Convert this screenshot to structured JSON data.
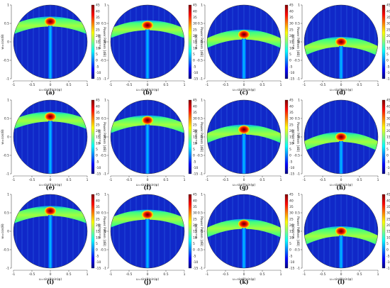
{
  "chart_data": [
    {
      "type": "heatmap",
      "panel": "(a)",
      "peak": {
        "u": 0.0,
        "v": 0.55
      },
      "xlabel": "u=sin(θ)sin(φ)",
      "ylabel": "w=cos(θ)",
      "colorbar_label": "Power Pattern [dB]",
      "colorbar_ticks": [
        45,
        40,
        35,
        30,
        25,
        20,
        15,
        10,
        5,
        0,
        -5,
        -10,
        -15
      ],
      "xticks": [
        -1,
        -0.5,
        0,
        0.5,
        1
      ],
      "yticks": [
        -1,
        -0.5,
        0,
        0.5,
        1
      ]
    },
    {
      "type": "heatmap",
      "panel": "(b)",
      "peak": {
        "u": 0.0,
        "v": 0.45
      },
      "xlabel": "u=sin(θ)sin(φ)",
      "ylabel": "w=cos(θ)",
      "colorbar_label": "Power Pattern [dB]",
      "colorbar_ticks": [
        45,
        40,
        35,
        30,
        25,
        20,
        15,
        10,
        5,
        0,
        -5,
        -10,
        -15
      ],
      "xticks": [
        -1,
        -0.5,
        0,
        0.5,
        1
      ],
      "yticks": [
        -1,
        -0.5,
        0,
        0.5,
        1
      ]
    },
    {
      "type": "heatmap",
      "panel": "(c)",
      "peak": {
        "u": 0.0,
        "v": 0.2
      },
      "xlabel": "u=sin(θ)sin(φ)",
      "ylabel": "w=cos(θ)",
      "colorbar_label": "Power Pattern [dB]",
      "colorbar_ticks": [
        45,
        40,
        35,
        30,
        25,
        20,
        15,
        10,
        5,
        0,
        -5,
        -10,
        -15
      ],
      "xticks": [
        -1,
        -0.5,
        0,
        0.5,
        1
      ],
      "yticks": [
        -1,
        -0.5,
        0,
        0.5,
        1
      ]
    },
    {
      "type": "heatmap",
      "panel": "(d)",
      "peak": {
        "u": 0.0,
        "v": 0.0
      },
      "xlabel": "u=sin(θ)sin(φ)",
      "ylabel": "w=cos(θ)",
      "colorbar_label": "Power Pattern [dB]",
      "colorbar_ticks": [
        45,
        40,
        35,
        30,
        25,
        20,
        15,
        10,
        5,
        0,
        -5,
        -10,
        -15
      ],
      "xticks": [
        -1,
        -0.5,
        0,
        0.5,
        1
      ],
      "yticks": [
        -1,
        -0.5,
        0,
        0.5,
        1
      ]
    },
    {
      "type": "heatmap",
      "panel": "(e)",
      "peak": {
        "u": 0.0,
        "v": 0.55
      },
      "xlabel": "u=sin(θ)sin(φ)",
      "ylabel": "w=cos(θ)",
      "colorbar_label": "Power Pattern [dB]",
      "colorbar_ticks": [
        45,
        40,
        35,
        30,
        25,
        20,
        15,
        10,
        5,
        0,
        -5,
        -10,
        -15
      ],
      "xticks": [
        -1,
        -0.5,
        0,
        0.5,
        1
      ],
      "yticks": [
        -1,
        -0.5,
        0,
        0.5,
        1
      ]
    },
    {
      "type": "heatmap",
      "panel": "(f)",
      "peak": {
        "u": 0.0,
        "v": 0.45
      },
      "xlabel": "u=sin(θ)sin(φ)",
      "ylabel": "w=cos(θ)",
      "colorbar_label": "Power Pattern [dB]",
      "colorbar_ticks": [
        45,
        40,
        35,
        30,
        25,
        20,
        15,
        10,
        5,
        0,
        -5,
        -10,
        -15
      ],
      "xticks": [
        -1,
        -0.5,
        0,
        0.5,
        1
      ],
      "yticks": [
        -1,
        -0.5,
        0,
        0.5,
        1
      ]
    },
    {
      "type": "heatmap",
      "panel": "(g)",
      "peak": {
        "u": 0.0,
        "v": 0.2
      },
      "xlabel": "u=sin(θ)sin(φ)",
      "ylabel": "w=cos(θ)",
      "colorbar_label": "Power Pattern [dB]",
      "colorbar_ticks": [
        45,
        40,
        35,
        30,
        25,
        20,
        15,
        10,
        5,
        0,
        -5,
        -10,
        -15
      ],
      "xticks": [
        -1,
        -0.5,
        0,
        0.5,
        1
      ],
      "yticks": [
        -1,
        -0.5,
        0,
        0.5,
        1
      ]
    },
    {
      "type": "heatmap",
      "panel": "(h)",
      "peak": {
        "u": 0.0,
        "v": 0.0
      },
      "xlabel": "u=sin(θ)sin(φ)",
      "ylabel": "w=cos(θ)",
      "colorbar_label": "Power Pattern [dB]",
      "colorbar_ticks": [
        45,
        40,
        35,
        30,
        25,
        20,
        15,
        10,
        5,
        0,
        -5,
        -10,
        -15
      ],
      "xticks": [
        -1,
        -0.5,
        0,
        0.5,
        1
      ],
      "yticks": [
        -1,
        -0.5,
        0,
        0.5,
        1
      ]
    },
    {
      "type": "heatmap",
      "panel": "(i)",
      "peak": {
        "u": 0.0,
        "v": 0.55
      },
      "xlabel": "u=sin(θ)sin(φ)",
      "ylabel": "w=cos(θ)",
      "colorbar_label": "Power Pattern [dB]",
      "colorbar_ticks": [
        45,
        40,
        35,
        30,
        25,
        20,
        15,
        10,
        5,
        0,
        -5,
        -10,
        -15
      ],
      "xticks": [
        -1,
        -0.5,
        0,
        0.5,
        1
      ],
      "yticks": [
        -1,
        -0.5,
        0,
        0.5,
        1
      ]
    },
    {
      "type": "heatmap",
      "panel": "(j)",
      "peak": {
        "u": 0.0,
        "v": 0.45
      },
      "xlabel": "u=sin(θ)sin(φ)",
      "ylabel": "w=cos(θ)",
      "colorbar_label": "Power Pattern [dB]",
      "colorbar_ticks": [
        45,
        40,
        35,
        30,
        25,
        20,
        15,
        10,
        5,
        0,
        -5,
        -10,
        -15
      ],
      "xticks": [
        -1,
        -0.5,
        0,
        0.5,
        1
      ],
      "yticks": [
        -1,
        -0.5,
        0,
        0.5,
        1
      ]
    },
    {
      "type": "heatmap",
      "panel": "(k)",
      "peak": {
        "u": 0.0,
        "v": 0.2
      },
      "xlabel": "u=sin(θ)sin(φ)",
      "ylabel": "w=cos(θ)",
      "colorbar_label": "Power Pattern [dB]",
      "colorbar_ticks": [
        45,
        40,
        35,
        30,
        25,
        20,
        15,
        10,
        5,
        0,
        -5,
        -10,
        -15
      ],
      "xticks": [
        -1,
        -0.5,
        0,
        0.5,
        1
      ],
      "yticks": [
        -1,
        -0.5,
        0,
        0.5,
        1
      ]
    },
    {
      "type": "heatmap",
      "panel": "(l)",
      "peak": {
        "u": 0.0,
        "v": 0.0
      },
      "xlabel": "u=sin(θ)sin(φ)",
      "ylabel": "w=cos(θ)",
      "colorbar_label": "Power Pattern [dB]",
      "colorbar_ticks": [
        45,
        40,
        35,
        30,
        25,
        20,
        15,
        10,
        5,
        0,
        -5,
        -10,
        -15
      ],
      "xticks": [
        -1,
        -0.5,
        0,
        0.5,
        1
      ],
      "yticks": [
        -1,
        -0.5,
        0,
        0.5,
        1
      ]
    }
  ],
  "colormap": {
    "name": "jet",
    "min_db": -15,
    "max_db": 45,
    "stops": [
      "#00007f",
      "#0000ff",
      "#0080ff",
      "#00ffff",
      "#80ff80",
      "#ffff00",
      "#ff8000",
      "#ff0000",
      "#7f0000"
    ]
  }
}
